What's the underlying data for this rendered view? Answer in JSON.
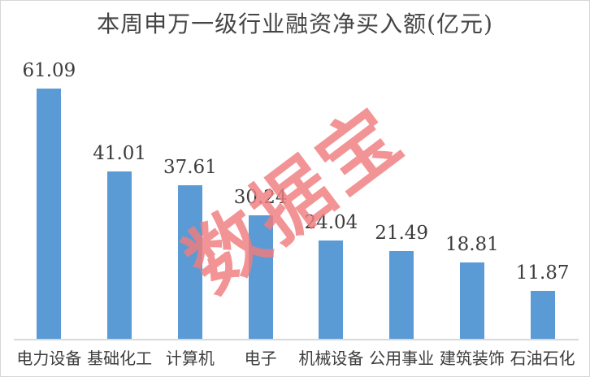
{
  "title": "本周申万一级行业融资净买入额(亿元)",
  "watermark": "数据宝",
  "colors": {
    "bar": "#5B9BD5",
    "watermark": "#F07D7E",
    "axis": "#D9D9D9",
    "text": "#3C3C3C",
    "title_text": "#454545"
  },
  "chart_data": {
    "type": "bar",
    "title": "本周申万一级行业融资净买入额(亿元)",
    "categories": [
      "电力设备",
      "基础化工",
      "计算机",
      "电子",
      "机械设备",
      "公用事业",
      "建筑装饰",
      "石油石化"
    ],
    "values": [
      61.09,
      41.01,
      37.61,
      30.24,
      24.04,
      21.49,
      18.81,
      11.87
    ],
    "value_labels": [
      "61.09",
      "41.01",
      "37.61",
      "30.24",
      "24.04",
      "21.49",
      "18.81",
      "11.87"
    ],
    "xlabel": "",
    "ylabel": "",
    "ylim": [
      0,
      61.09
    ],
    "grid": false,
    "legend": "none",
    "bar_color": "#5B9BD5",
    "watermark_text": "数据宝"
  }
}
